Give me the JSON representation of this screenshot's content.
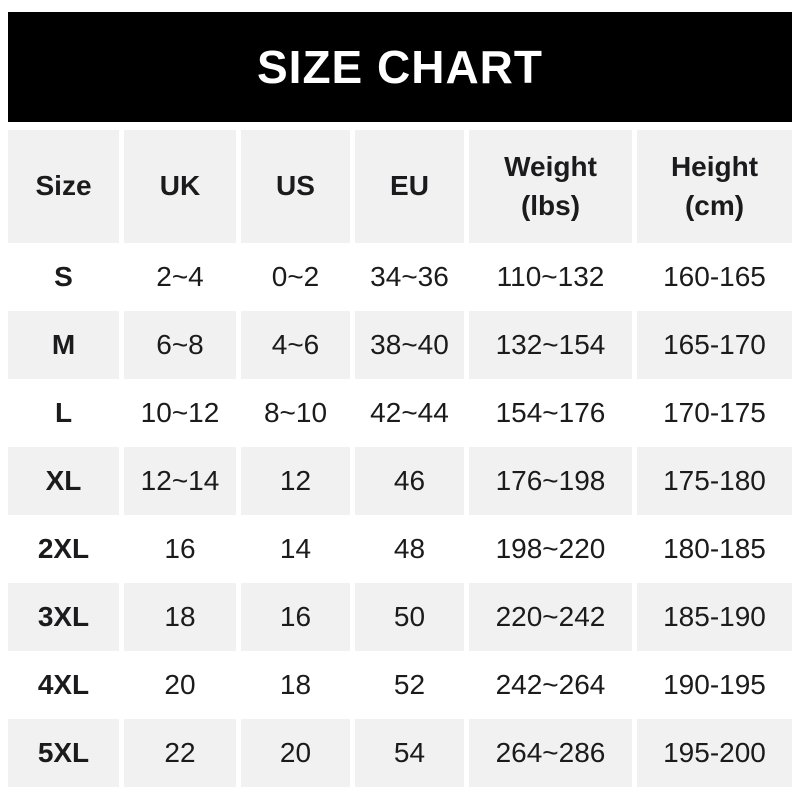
{
  "banner": {
    "title": "SIZE CHART"
  },
  "colors": {
    "banner_bg": "#000000",
    "banner_text": "#ffffff",
    "page_bg": "#ffffff",
    "row_shade": "#f1f1f1",
    "row_plain": "#ffffff",
    "text": "#1b1b1d"
  },
  "chart_data": {
    "type": "table",
    "title": "SIZE CHART",
    "columns": [
      {
        "name": "Size",
        "unit": ""
      },
      {
        "name": "UK",
        "unit": ""
      },
      {
        "name": "US",
        "unit": ""
      },
      {
        "name": "EU",
        "unit": ""
      },
      {
        "name": "Weight",
        "unit": "(lbs)"
      },
      {
        "name": "Height",
        "unit": "(cm)"
      }
    ],
    "rows": [
      [
        "S",
        "2~4",
        "0~2",
        "34~36",
        "110~132",
        "160-165"
      ],
      [
        "M",
        "6~8",
        "4~6",
        "38~40",
        "132~154",
        "165-170"
      ],
      [
        "L",
        "10~12",
        "8~10",
        "42~44",
        "154~176",
        "170-175"
      ],
      [
        "XL",
        "12~14",
        "12",
        "46",
        "176~198",
        "175-180"
      ],
      [
        "2XL",
        "16",
        "14",
        "48",
        "198~220",
        "180-185"
      ],
      [
        "3XL",
        "18",
        "16",
        "50",
        "220~242",
        "185-190"
      ],
      [
        "4XL",
        "20",
        "18",
        "52",
        "242~264",
        "190-195"
      ],
      [
        "5XL",
        "22",
        "20",
        "54",
        "264~286",
        "195-200"
      ]
    ]
  }
}
